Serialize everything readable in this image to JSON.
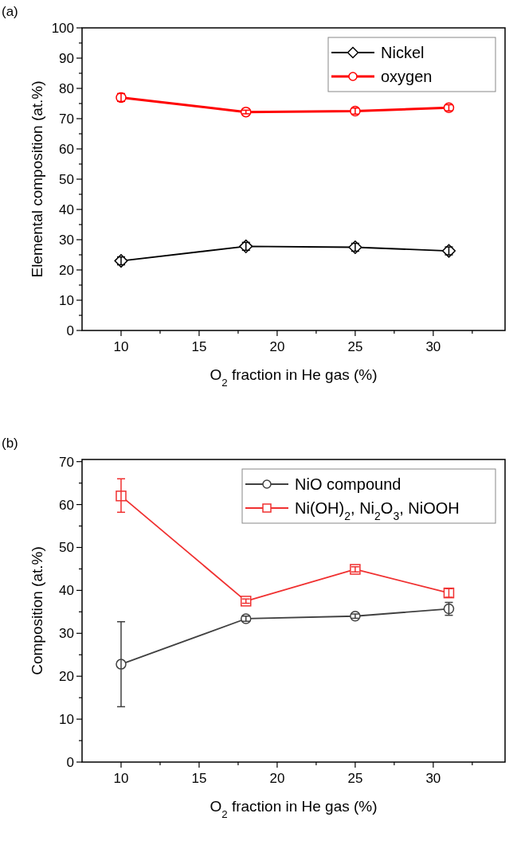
{
  "chart_data": [
    {
      "type": "line",
      "annotations": [
        "(a)"
      ],
      "xlabel": "O$_{2}$ fraction in He gas (%)",
      "ylabel": "Elemental composition (at.%)",
      "x": [
        10,
        18,
        25,
        31
      ],
      "xlim": [
        7.5,
        34.6
      ],
      "xticks": [
        10,
        {
          "value": 12.5,
          "label": null
        },
        15,
        {
          "value": 17.5,
          "label": null
        },
        20,
        {
          "value": 22.5,
          "label": null
        },
        25,
        {
          "value": 27.5,
          "label": null
        },
        30,
        {
          "value": 32.5,
          "label": null
        }
      ],
      "ylim": [
        0,
        100
      ],
      "yticks": [
        0,
        {
          "value": 5,
          "label": null
        },
        10,
        {
          "value": 15,
          "label": null
        },
        20,
        {
          "value": 25,
          "label": null
        },
        30,
        {
          "value": 35,
          "label": null
        },
        40,
        {
          "value": 45,
          "label": null
        },
        50,
        {
          "value": 55,
          "label": null
        },
        60,
        {
          "value": 65,
          "label": null
        },
        70,
        {
          "value": 75,
          "label": null
        },
        80,
        {
          "value": 85,
          "label": null
        },
        90,
        {
          "value": 95,
          "label": null
        },
        100
      ],
      "grid": false,
      "legend": "top right",
      "series": [
        {
          "name": "Nickel",
          "color": "#000000",
          "marker": "diamond",
          "values": [
            23,
            27.8,
            27.5,
            26.3
          ],
          "errors": [
            1.3,
            1.3,
            1.3,
            1.3
          ]
        },
        {
          "name": "oxygen",
          "color": "#ff0000",
          "marker": "circle",
          "values": [
            77,
            72.2,
            72.5,
            73.6
          ],
          "errors": [
            1.3,
            0.6,
            1,
            1
          ]
        }
      ]
    },
    {
      "type": "line",
      "annotations": [
        "(b)"
      ],
      "xlabel": "O$_{2}$ fraction in He gas (%)",
      "ylabel": "Composition (at.%)",
      "x": [
        10,
        18,
        25,
        31
      ],
      "xlim": [
        7.5,
        34.6
      ],
      "xticks": [
        10,
        {
          "value": 12.5,
          "label": null
        },
        15,
        {
          "value": 17.5,
          "label": null
        },
        20,
        {
          "value": 22.5,
          "label": null
        },
        25,
        {
          "value": 27.5,
          "label": null
        },
        30,
        {
          "value": 32.5,
          "label": null
        }
      ],
      "ylim": [
        0,
        70.5
      ],
      "yticks": [
        0,
        {
          "value": 5,
          "label": null
        },
        10,
        {
          "value": 15,
          "label": null
        },
        20,
        {
          "value": 25,
          "label": null
        },
        30,
        {
          "value": 35,
          "label": null
        },
        40,
        {
          "value": 45,
          "label": null
        },
        50,
        {
          "value": 55,
          "label": null
        },
        60,
        {
          "value": 65,
          "label": null
        },
        70
      ],
      "grid": false,
      "legend": "top right",
      "series": [
        {
          "name": "NiO compound",
          "color": "#404040",
          "marker": "circle",
          "values": [
            22.8,
            33.4,
            34,
            35.7
          ],
          "errors": [
            [
              12.9,
              32.7
            ],
            0.6,
            0.5,
            1.5
          ]
        },
        {
          "name": "Ni(OH)$_{2}$, Ni$_{2}$O$_{3}$, NiOOH",
          "color": "#f03030",
          "marker": "square",
          "values": [
            62,
            37.5,
            44.9,
            39.4
          ],
          "errors": [
            [
              58.2,
              66
            ],
            0.5,
            0.6,
            1
          ]
        }
      ]
    }
  ]
}
